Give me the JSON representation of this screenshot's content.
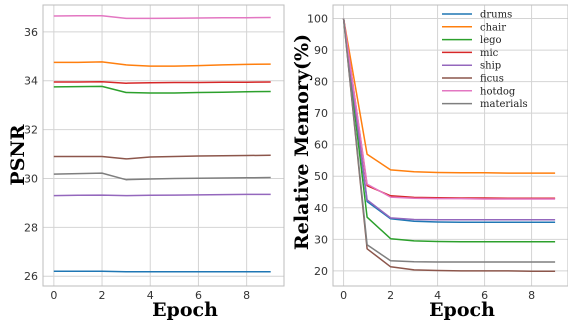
{
  "chart_data": [
    {
      "type": "line",
      "xlabel": "Epoch",
      "ylabel": "PSNR",
      "x": [
        0,
        1,
        2,
        3,
        4,
        5,
        6,
        7,
        8,
        9
      ],
      "xlim": [
        -0.45,
        9.55
      ],
      "ylim": [
        25.6,
        37.1
      ],
      "xticks": [
        0,
        2,
        4,
        6,
        8
      ],
      "yticks": [
        26,
        28,
        30,
        32,
        34,
        36
      ],
      "grid": true,
      "series": [
        {
          "name": "drums",
          "color": "#1f77b4",
          "values": [
            26.2,
            26.2,
            26.2,
            26.18,
            26.18,
            26.18,
            26.18,
            26.18,
            26.18,
            26.18
          ]
        },
        {
          "name": "chair",
          "color": "#ff7f0e",
          "values": [
            34.75,
            34.75,
            34.77,
            34.65,
            34.6,
            34.6,
            34.62,
            34.65,
            34.67,
            34.68
          ]
        },
        {
          "name": "lego",
          "color": "#2ca02c",
          "values": [
            33.75,
            33.76,
            33.77,
            33.52,
            33.5,
            33.5,
            33.52,
            33.53,
            33.55,
            33.56
          ]
        },
        {
          "name": "mic",
          "color": "#d62728",
          "values": [
            33.95,
            33.95,
            33.96,
            33.9,
            33.92,
            33.93,
            33.93,
            33.94,
            33.94,
            33.95
          ]
        },
        {
          "name": "ship",
          "color": "#9467bd",
          "values": [
            29.3,
            29.31,
            29.32,
            29.3,
            29.31,
            29.32,
            29.33,
            29.34,
            29.35,
            29.35
          ]
        },
        {
          "name": "ficus",
          "color": "#8c564b",
          "values": [
            30.9,
            30.9,
            30.9,
            30.8,
            30.88,
            30.9,
            30.92,
            30.93,
            30.94,
            30.95
          ]
        },
        {
          "name": "hotdog",
          "color": "#e377c2",
          "values": [
            36.65,
            36.66,
            36.66,
            36.55,
            36.55,
            36.56,
            36.57,
            36.58,
            36.58,
            36.59
          ]
        },
        {
          "name": "materials",
          "color": "#7f7f7f",
          "values": [
            30.18,
            30.2,
            30.22,
            29.95,
            29.98,
            30.0,
            30.01,
            30.02,
            30.03,
            30.04
          ]
        }
      ]
    },
    {
      "type": "line",
      "xlabel": "Epoch",
      "ylabel": "Relative Memory(%)",
      "x": [
        0,
        1,
        2,
        3,
        4,
        5,
        6,
        7,
        8,
        9
      ],
      "xlim": [
        -0.45,
        9.55
      ],
      "ylim": [
        15.2,
        104.3
      ],
      "xticks": [
        0,
        2,
        4,
        6,
        8
      ],
      "yticks": [
        20,
        30,
        40,
        50,
        60,
        70,
        80,
        90,
        100
      ],
      "grid": true,
      "legend": "top-right",
      "series": [
        {
          "name": "drums",
          "color": "#1f77b4",
          "values": [
            100,
            42,
            36.5,
            35.7,
            35.5,
            35.4,
            35.4,
            35.4,
            35.4,
            35.4
          ]
        },
        {
          "name": "chair",
          "color": "#ff7f0e",
          "values": [
            100,
            57,
            52,
            51.4,
            51.2,
            51.1,
            51.1,
            51.0,
            51.0,
            51.0
          ]
        },
        {
          "name": "lego",
          "color": "#2ca02c",
          "values": [
            100,
            37,
            30.2,
            29.5,
            29.3,
            29.2,
            29.2,
            29.2,
            29.2,
            29.2
          ]
        },
        {
          "name": "mic",
          "color": "#d62728",
          "values": [
            100,
            47,
            43.8,
            43.3,
            43.2,
            43.1,
            43.1,
            43.0,
            43.0,
            43.0
          ]
        },
        {
          "name": "ship",
          "color": "#9467bd",
          "values": [
            100,
            42.5,
            36.8,
            36.3,
            36.2,
            36.2,
            36.2,
            36.2,
            36.2,
            36.2
          ]
        },
        {
          "name": "ficus",
          "color": "#8c564b",
          "values": [
            100,
            27,
            21.3,
            20.3,
            20.1,
            20.0,
            20.0,
            20.0,
            19.9,
            19.9
          ]
        },
        {
          "name": "hotdog",
          "color": "#e377c2",
          "values": [
            100,
            47.5,
            43.4,
            43.0,
            42.9,
            42.9,
            42.8,
            42.8,
            42.8,
            42.8
          ]
        },
        {
          "name": "materials",
          "color": "#7f7f7f",
          "values": [
            100,
            28.3,
            23.2,
            22.9,
            22.8,
            22.8,
            22.8,
            22.8,
            22.8,
            22.8
          ]
        }
      ]
    }
  ]
}
